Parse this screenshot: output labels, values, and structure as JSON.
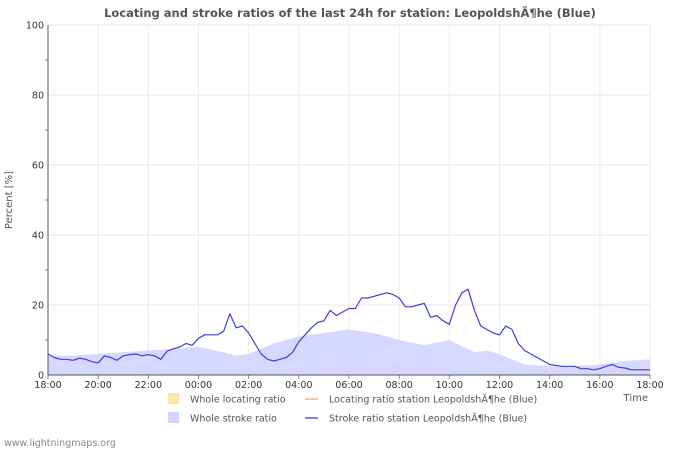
{
  "chart_data": {
    "type": "area",
    "title": "Locating and stroke ratios of the last 24h for station: LeopoldshÃ¶he (Blue)",
    "ylabel": "Percent   [%]",
    "xlabel": "Time",
    "ylim": [
      0,
      100
    ],
    "yticks": [
      0,
      20,
      40,
      60,
      80,
      100
    ],
    "xlim": [
      0,
      24
    ],
    "xtick_labels": [
      "18:00",
      "20:00",
      "22:00",
      "00:00",
      "02:00",
      "04:00",
      "06:00",
      "08:00",
      "10:00",
      "12:00",
      "14:00",
      "16:00",
      "18:00"
    ],
    "grid": true,
    "series": [
      {
        "name": "Whole locating ratio",
        "kind": "area",
        "color": "#ffe4a8",
        "x": [
          0,
          2,
          4,
          6,
          8,
          10,
          12,
          14,
          16,
          18,
          20,
          22,
          24
        ],
        "values": [
          1.0,
          0.8,
          0.9,
          1.2,
          1.0,
          1.8,
          2.2,
          3.0,
          1.8,
          1.0,
          1.5,
          1.8,
          2.5
        ]
      },
      {
        "name": "Locating ratio station LeopoldshÃ¶he (Blue)",
        "kind": "line",
        "color": "#e8b070",
        "x": [
          0,
          1,
          2,
          3,
          4,
          5,
          6,
          7,
          8,
          8.5,
          9,
          10,
          11,
          11.5,
          12,
          13,
          14,
          15,
          16,
          17,
          18,
          19,
          20,
          21,
          22,
          23,
          24
        ],
        "values": [
          0.3,
          0.3,
          0.3,
          0.3,
          0.5,
          0.8,
          1.0,
          0.8,
          0.5,
          0.5,
          1.0,
          2.0,
          2.5,
          2.0,
          2.0,
          2.5,
          2.5,
          2.0,
          2.5,
          4.5,
          2.5,
          1.5,
          0.8,
          0.5,
          0.5,
          1.0,
          2.5
        ]
      },
      {
        "name": "Whole stroke ratio",
        "kind": "area",
        "color": "#d4d6ff",
        "x": [
          0,
          1,
          2,
          3,
          4,
          5,
          6,
          7,
          7.5,
          8,
          9,
          10,
          11,
          12,
          13,
          14,
          15,
          16,
          17,
          17.5,
          18,
          19,
          20,
          21,
          22,
          23,
          24
        ],
        "values": [
          5.5,
          5.5,
          6.0,
          6.5,
          7.0,
          7.5,
          8.0,
          6.5,
          5.5,
          6.0,
          9.0,
          11.0,
          12.0,
          13.0,
          12.0,
          10.0,
          8.5,
          10.0,
          6.5,
          7.0,
          6.0,
          3.0,
          2.5,
          2.5,
          3.0,
          4.0,
          4.5
        ]
      },
      {
        "name": "Stroke ratio station LeopoldshÃ¶he (Blue)",
        "kind": "line",
        "color": "#3f3fd8",
        "x": [
          0,
          0.25,
          0.5,
          0.75,
          1,
          1.25,
          1.5,
          1.75,
          2,
          2.25,
          2.5,
          2.75,
          3,
          3.25,
          3.5,
          3.75,
          4,
          4.25,
          4.5,
          4.75,
          5,
          5.25,
          5.5,
          5.75,
          6,
          6.25,
          6.5,
          6.75,
          7,
          7.25,
          7.5,
          7.75,
          8,
          8.25,
          8.5,
          8.75,
          9,
          9.25,
          9.5,
          9.75,
          10,
          10.25,
          10.5,
          10.75,
          11,
          11.25,
          11.5,
          11.75,
          12,
          12.25,
          12.5,
          12.75,
          13,
          13.25,
          13.5,
          13.75,
          14,
          14.25,
          14.5,
          14.75,
          15,
          15.25,
          15.5,
          15.75,
          16,
          16.25,
          16.5,
          16.75,
          17,
          17.25,
          17.5,
          17.75,
          18,
          18.25,
          18.5,
          18.75,
          19,
          19.5,
          20,
          20.5,
          21,
          21.25,
          21.5,
          21.75,
          22,
          22.25,
          22.5,
          22.75,
          23,
          23.25,
          23.5,
          23.75,
          24
        ],
        "values": [
          6,
          5,
          4.5,
          4.5,
          4.2,
          4.8,
          4.5,
          3.8,
          3.5,
          5.5,
          5,
          4.2,
          5.5,
          5.8,
          6,
          5.5,
          5.8,
          5.5,
          4.5,
          6.8,
          7.5,
          8,
          9,
          8.5,
          10.5,
          11.5,
          11.5,
          11.5,
          12.5,
          17.5,
          13.5,
          14,
          12,
          9,
          6,
          4.5,
          4,
          4.5,
          5,
          6.5,
          9.5,
          11.5,
          13.5,
          15,
          15.5,
          18.5,
          17,
          18,
          19,
          19,
          22,
          22,
          22.5,
          23,
          23.5,
          23,
          22,
          19.5,
          19.5,
          20,
          20.5,
          16.5,
          17,
          15.5,
          14.5,
          20,
          23.5,
          24.5,
          18.5,
          14,
          13,
          12,
          11.5,
          14,
          13,
          9,
          7,
          5,
          3,
          2.5,
          2.5,
          1.8,
          1.8,
          1.5,
          1.8,
          2.5,
          3,
          2.2,
          2,
          1.5,
          1.5,
          1.5,
          1.5
        ]
      }
    ],
    "legend": [
      {
        "label": "Whole locating ratio",
        "kind": "box",
        "color": "#ffe4a8"
      },
      {
        "label": "Locating ratio station LeopoldshÃ¶he (Blue)",
        "kind": "line",
        "color": "#e8b070"
      },
      {
        "label": "Whole stroke ratio",
        "kind": "box",
        "color": "#d4d6ff"
      },
      {
        "label": "Stroke ratio station LeopoldshÃ¶he (Blue)",
        "kind": "line",
        "color": "#3f3fd8"
      }
    ]
  },
  "footer": "www.lightningmaps.org"
}
